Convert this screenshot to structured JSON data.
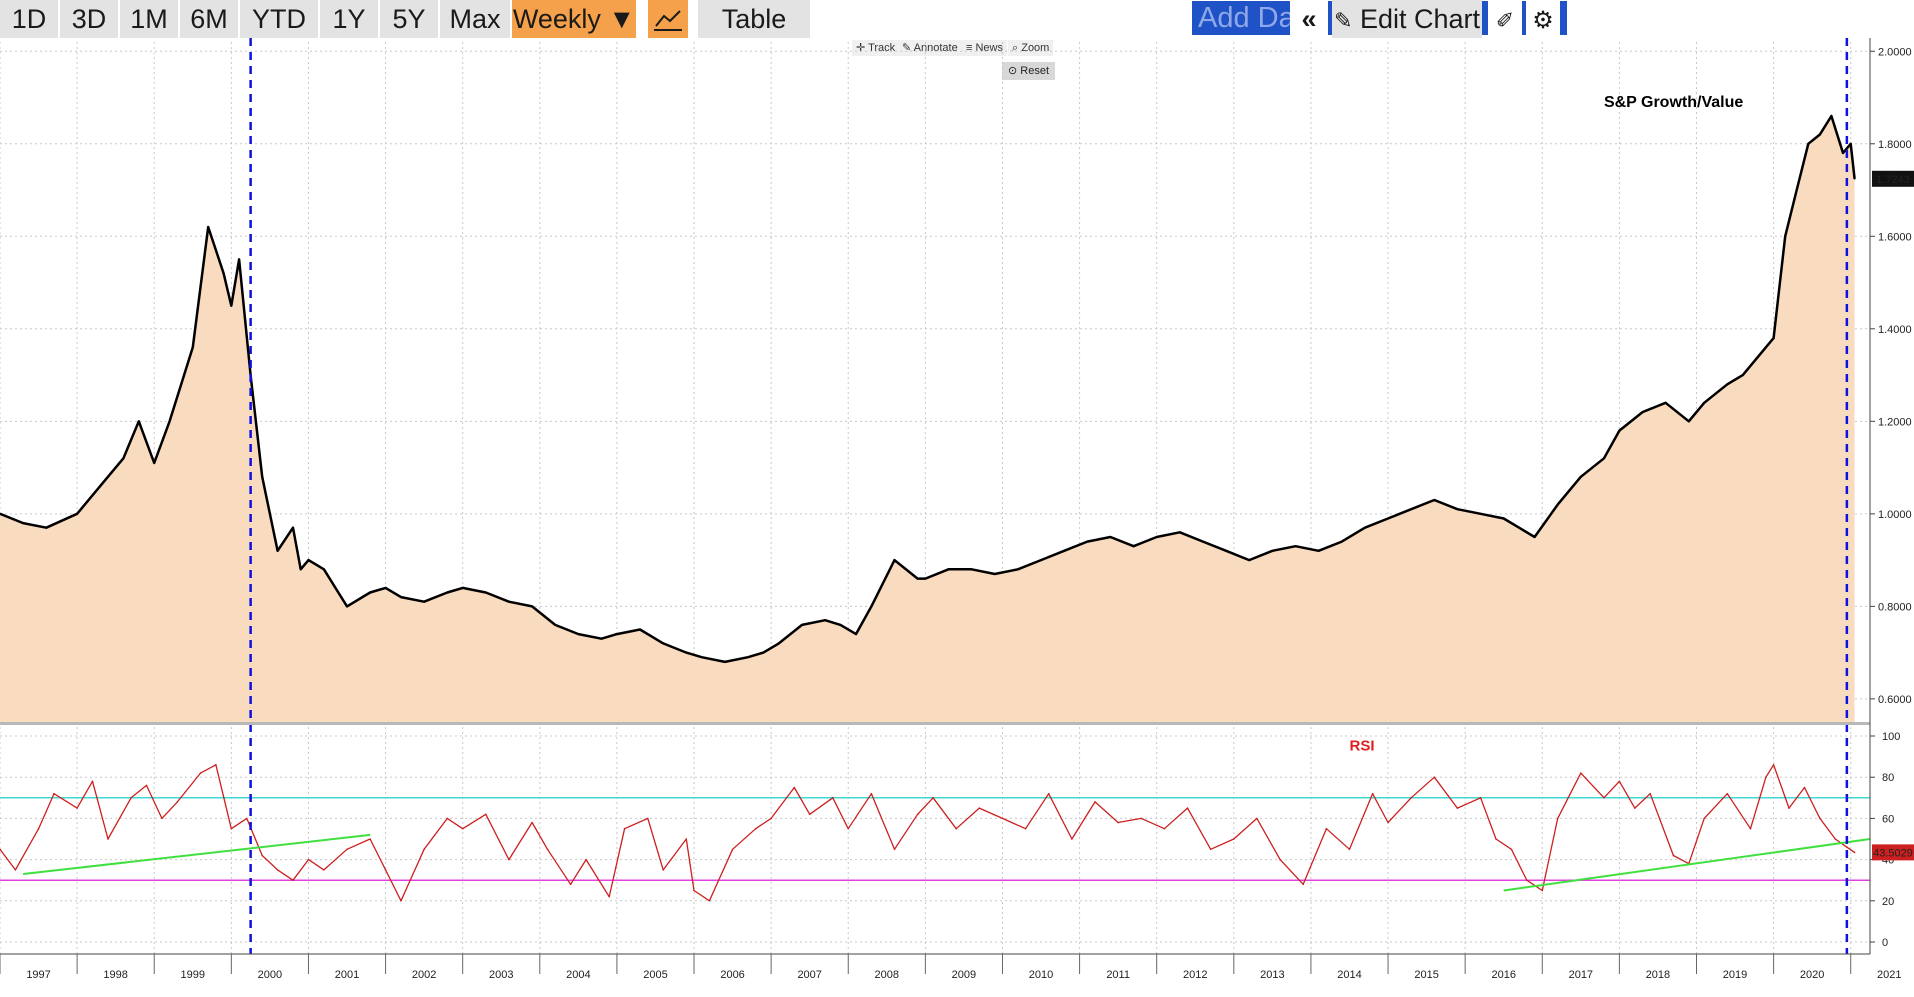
{
  "toolbar": {
    "buttons": [
      "1D",
      "3D",
      "1M",
      "6M",
      "YTD",
      "1Y",
      "5Y",
      "Max"
    ],
    "frequency": "Weekly ▼",
    "table": "Table",
    "add_data_placeholder": "Add Data",
    "edit_chart": "Edit Chart",
    "chart_tools": [
      "Track",
      "Annotate",
      "News",
      "Zoom"
    ],
    "reset": "Reset"
  },
  "colors": {
    "accent": "#f5a04a",
    "area_fill": "#f9dcc0",
    "rsi_line": "#cc2020",
    "guide_line": "#1010e0",
    "trend_line": "#40e040"
  },
  "chart_data": [
    {
      "type": "area",
      "title": "S&P Growth/Value",
      "ylim": [
        0.55,
        2.02
      ],
      "y_ticks": [
        "2.0000",
        "1.8000",
        "1.6000",
        "1.4000",
        "1.2000",
        "1.0000",
        "0.8000",
        "0.6000"
      ],
      "last_value": "1.7243",
      "x": [
        1997.0,
        1997.3,
        1997.6,
        1998.0,
        1998.3,
        1998.6,
        1998.8,
        1999.0,
        1999.2,
        1999.5,
        1999.7,
        1999.9,
        2000.0,
        2000.1,
        2000.25,
        2000.4,
        2000.6,
        2000.8,
        2000.9,
        2001.0,
        2001.2,
        2001.5,
        2001.8,
        2002.0,
        2002.2,
        2002.5,
        2002.8,
        2003.0,
        2003.3,
        2003.6,
        2003.9,
        2004.2,
        2004.5,
        2004.8,
        2005.0,
        2005.3,
        2005.6,
        2005.9,
        2006.1,
        2006.4,
        2006.7,
        2006.9,
        2007.1,
        2007.4,
        2007.7,
        2007.9,
        2008.1,
        2008.3,
        2008.6,
        2008.9,
        2009.0,
        2009.3,
        2009.6,
        2009.9,
        2010.2,
        2010.5,
        2010.8,
        2011.1,
        2011.4,
        2011.7,
        2012.0,
        2012.3,
        2012.6,
        2012.9,
        2013.2,
        2013.5,
        2013.8,
        2014.1,
        2014.4,
        2014.7,
        2015.0,
        2015.3,
        2015.6,
        2015.9,
        2016.2,
        2016.5,
        2016.7,
        2016.9,
        2017.2,
        2017.5,
        2017.8,
        2018.0,
        2018.3,
        2018.6,
        2018.9,
        2019.1,
        2019.4,
        2019.6,
        2019.8,
        2020.0,
        2020.15,
        2020.3,
        2020.45,
        2020.6,
        2020.75,
        2020.9,
        2021.0,
        2021.05
      ],
      "values": [
        1.0,
        0.98,
        0.97,
        1.0,
        1.06,
        1.12,
        1.2,
        1.11,
        1.2,
        1.36,
        1.62,
        1.52,
        1.45,
        1.55,
        1.3,
        1.08,
        0.92,
        0.97,
        0.88,
        0.9,
        0.88,
        0.8,
        0.83,
        0.84,
        0.82,
        0.81,
        0.83,
        0.84,
        0.83,
        0.81,
        0.8,
        0.76,
        0.74,
        0.73,
        0.74,
        0.75,
        0.72,
        0.7,
        0.69,
        0.68,
        0.69,
        0.7,
        0.72,
        0.76,
        0.77,
        0.76,
        0.74,
        0.8,
        0.9,
        0.86,
        0.86,
        0.88,
        0.88,
        0.87,
        0.88,
        0.9,
        0.92,
        0.94,
        0.95,
        0.93,
        0.95,
        0.96,
        0.94,
        0.92,
        0.9,
        0.92,
        0.93,
        0.92,
        0.94,
        0.97,
        0.99,
        1.01,
        1.03,
        1.01,
        1.0,
        0.99,
        0.97,
        0.95,
        1.02,
        1.08,
        1.12,
        1.18,
        1.22,
        1.24,
        1.2,
        1.24,
        1.28,
        1.3,
        1.34,
        1.38,
        1.6,
        1.7,
        1.8,
        1.82,
        1.86,
        1.78,
        1.8,
        1.7243
      ]
    },
    {
      "type": "line",
      "title": "RSI",
      "ylim": [
        0,
        100
      ],
      "y_ticks": [
        "100",
        "80",
        "60",
        "40",
        "20",
        "0"
      ],
      "last_value": "43.5029",
      "reference_lines": [
        70,
        30
      ],
      "x": [
        1997.0,
        1997.2,
        1997.5,
        1997.7,
        1998.0,
        1998.2,
        1998.4,
        1998.7,
        1998.9,
        1999.1,
        1999.3,
        1999.6,
        1999.8,
        2000.0,
        2000.2,
        2000.4,
        2000.6,
        2000.8,
        2001.0,
        2001.2,
        2001.5,
        2001.8,
        2002.0,
        2002.2,
        2002.5,
        2002.8,
        2003.0,
        2003.3,
        2003.6,
        2003.9,
        2004.1,
        2004.4,
        2004.6,
        2004.9,
        2005.1,
        2005.4,
        2005.6,
        2005.9,
        2006.0,
        2006.2,
        2006.5,
        2006.8,
        2007.0,
        2007.3,
        2007.5,
        2007.8,
        2008.0,
        2008.3,
        2008.6,
        2008.9,
        2009.1,
        2009.4,
        2009.7,
        2010.0,
        2010.3,
        2010.6,
        2010.9,
        2011.2,
        2011.5,
        2011.8,
        2012.1,
        2012.4,
        2012.7,
        2013.0,
        2013.3,
        2013.6,
        2013.9,
        2014.2,
        2014.5,
        2014.8,
        2015.0,
        2015.3,
        2015.6,
        2015.9,
        2016.2,
        2016.4,
        2016.6,
        2016.8,
        2017.0,
        2017.2,
        2017.5,
        2017.8,
        2018.0,
        2018.2,
        2018.4,
        2018.7,
        2018.9,
        2019.1,
        2019.4,
        2019.7,
        2019.9,
        2020.0,
        2020.2,
        2020.4,
        2020.6,
        2020.8,
        2020.95,
        2021.05
      ],
      "values": [
        45,
        35,
        55,
        72,
        65,
        78,
        50,
        70,
        76,
        60,
        68,
        82,
        86,
        55,
        60,
        42,
        35,
        30,
        40,
        35,
        45,
        50,
        35,
        20,
        45,
        60,
        55,
        62,
        40,
        58,
        45,
        28,
        40,
        22,
        55,
        60,
        35,
        50,
        25,
        20,
        45,
        55,
        60,
        75,
        62,
        70,
        55,
        72,
        45,
        62,
        70,
        55,
        65,
        60,
        55,
        72,
        50,
        68,
        58,
        60,
        55,
        65,
        45,
        50,
        60,
        40,
        28,
        55,
        45,
        72,
        58,
        70,
        80,
        65,
        70,
        50,
        45,
        30,
        25,
        60,
        82,
        70,
        78,
        65,
        72,
        42,
        38,
        60,
        72,
        55,
        80,
        86,
        65,
        75,
        60,
        50,
        46,
        43.5
      ]
    }
  ],
  "x_labels": [
    "1997",
    "1998",
    "1999",
    "2000",
    "2001",
    "2002",
    "2003",
    "2004",
    "2005",
    "2006",
    "2007",
    "2008",
    "2009",
    "2010",
    "2011",
    "2012",
    "2013",
    "2014",
    "2015",
    "2016",
    "2017",
    "2018",
    "2019",
    "2020",
    "2021"
  ]
}
